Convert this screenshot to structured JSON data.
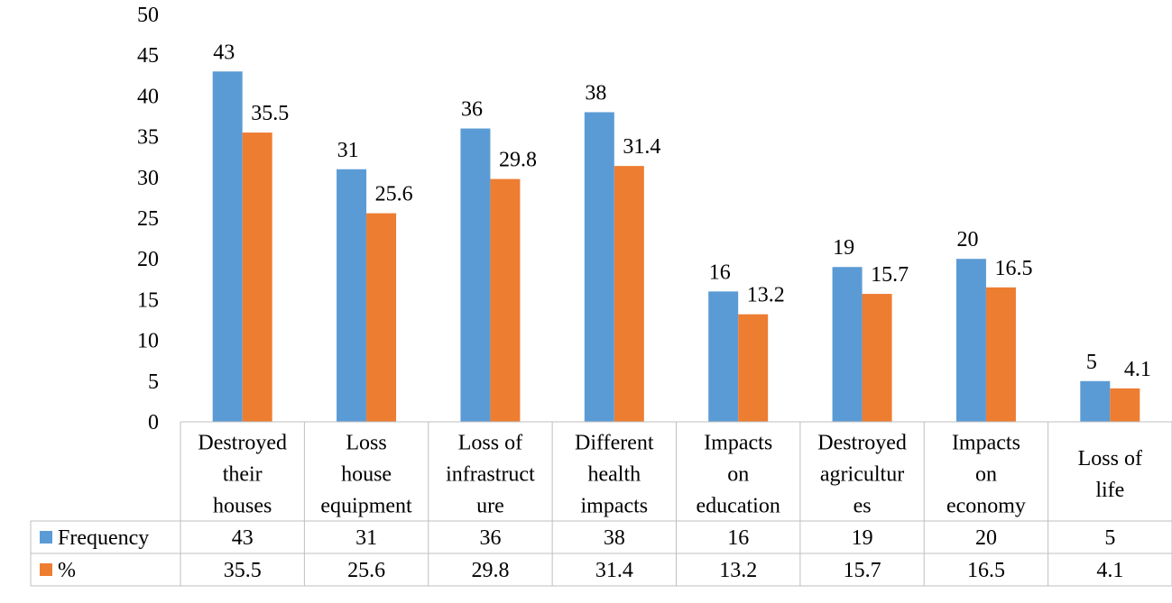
{
  "chart_data": {
    "type": "bar",
    "categories": [
      [
        "Destroyed",
        "their",
        "houses"
      ],
      [
        "Loss",
        "house",
        "equipment"
      ],
      [
        "Loss of",
        "infrastruct",
        "ure"
      ],
      [
        "Different",
        "health",
        "impacts"
      ],
      [
        "Impacts",
        "on",
        "education"
      ],
      [
        "Destroyed",
        "agricultur",
        "es"
      ],
      [
        "Impacts",
        "on",
        "economy"
      ],
      [
        "Loss of",
        "life"
      ]
    ],
    "series": [
      {
        "name": "Frequency",
        "color": "#5b9bd5",
        "values": [
          43,
          31,
          36,
          38,
          16,
          19,
          20,
          5
        ]
      },
      {
        "name": "%",
        "color": "#ed7d31",
        "values": [
          35.5,
          25.6,
          29.8,
          31.4,
          13.2,
          15.7,
          16.5,
          4.1
        ]
      }
    ],
    "ylim": [
      0,
      50
    ],
    "yticks": [
      0,
      5,
      10,
      15,
      20,
      25,
      30,
      35,
      40,
      45,
      50
    ],
    "grid": false,
    "data_table": true
  }
}
